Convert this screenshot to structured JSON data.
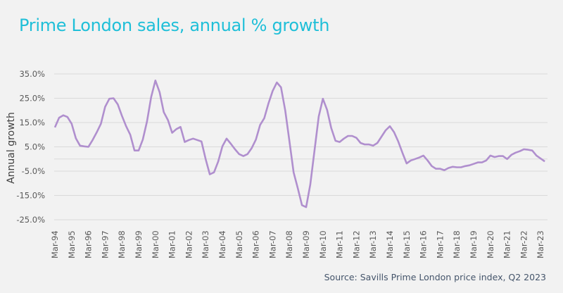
{
  "title": "Prime London sales, annual % growth",
  "source": "Source: Savills Prime London price index, Q2 2023",
  "colors": {
    "title": "#1fbfd8",
    "line": "#b08fce",
    "grid": "#d9d9d9",
    "source": "#44546a"
  },
  "chart_data": {
    "type": "line",
    "title": "Prime London sales, annual % growth",
    "xlabel": "",
    "ylabel": "Annual growth",
    "ylim": [
      -25,
      35
    ],
    "yticks": [
      -25,
      -15,
      -5,
      5,
      15,
      25,
      35
    ],
    "ytick_labels": [
      "-25.0%",
      "-15.0%",
      "-5.0%",
      "5.0%",
      "15.0%",
      "25.0%",
      "35.0%"
    ],
    "grid": true,
    "legend": "none",
    "x_start": "Mar-94",
    "x_frequency": "quarterly",
    "xtick_labels": [
      "Mar-94",
      "Mar-95",
      "Mar-96",
      "Mar-97",
      "Mar-98",
      "Mar-99",
      "Mar-00",
      "Mar-01",
      "Mar-02",
      "Mar-03",
      "Mar-04",
      "Mar-05",
      "Mar-06",
      "Mar-07",
      "Mar-08",
      "Mar-09",
      "Mar-10",
      "Mar-11",
      "Mar-12",
      "Mar-13",
      "Mar-14",
      "Mar-15",
      "Mar-16",
      "Mar-17",
      "Mar-18",
      "Mar-19",
      "Mar-20",
      "Mar-21",
      "Mar-22",
      "Mar-23"
    ],
    "series": [
      {
        "name": "Annual growth",
        "values": [
          13,
          17,
          18,
          17.3,
          14.5,
          8.5,
          5.5,
          5.2,
          5.0,
          7.8,
          11,
          14.5,
          21.5,
          24.8,
          25,
          22.5,
          17.8,
          13.5,
          10,
          3.5,
          3.5,
          8,
          15.5,
          25.5,
          32.3,
          27.5,
          19.3,
          16,
          10.8,
          12.3,
          13.2,
          7,
          7.8,
          8.4,
          7.8,
          7.2,
          0,
          -6.3,
          -5.5,
          -1,
          5.2,
          8.4,
          6.3,
          4,
          2,
          1.2,
          2,
          4.5,
          8,
          14,
          16.8,
          22.8,
          28,
          31.5,
          29.5,
          20,
          7.5,
          -5.5,
          -12,
          -19,
          -19.8,
          -10.5,
          3.5,
          17.5,
          24.8,
          20.2,
          12.7,
          7.5,
          7,
          8.4,
          9.5,
          9.5,
          8.7,
          6.6,
          6,
          6,
          5.5,
          6.6,
          9.2,
          11.8,
          13.5,
          11,
          7.2,
          2.5,
          -1.8,
          -0.6,
          0,
          0.6,
          1.4,
          -0.6,
          -2.9,
          -4,
          -4,
          -4.6,
          -3.7,
          -3.2,
          -3.4,
          -3.4,
          -2.9,
          -2.6,
          -2,
          -1.4,
          -1.4,
          -0.6,
          1.4,
          0.8,
          1.2,
          1.2,
          0,
          1.7,
          2.6,
          3.2,
          4,
          3.8,
          3.5,
          1.4,
          0.2,
          -1
        ]
      }
    ]
  }
}
